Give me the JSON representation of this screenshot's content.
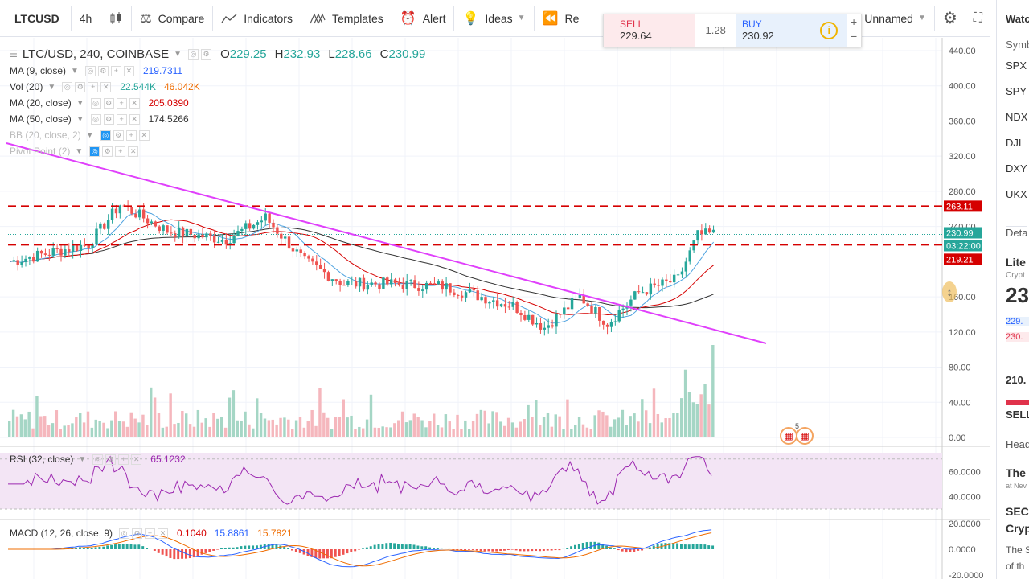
{
  "toolbar": {
    "symbol": "LTCUSD",
    "interval": "4h",
    "compare": "Compare",
    "indicators": "Indicators",
    "templates": "Templates",
    "alert": "Alert",
    "ideas": "Ideas",
    "replay": "Re",
    "layout_name": "Unnamed"
  },
  "trade": {
    "sell_label": "SELL",
    "sell_value": "229.64",
    "spread": "1.28",
    "buy_label": "BUY",
    "buy_value": "230.92",
    "info": "i",
    "plus": "+",
    "minus": "−"
  },
  "main_legend": {
    "title": "LTC/USD, 240, COINBASE",
    "o_label": "O",
    "o": "229.25",
    "h_label": "H",
    "h": "232.93",
    "l_label": "L",
    "l": "228.66",
    "c_label": "C",
    "c": "230.99"
  },
  "indicators": [
    {
      "name": "MA (9, close)",
      "values": [
        "219.7311"
      ],
      "colors": [
        "#2962ff"
      ]
    },
    {
      "name": "Vol (20)",
      "values": [
        "22.544K",
        "46.042K"
      ],
      "colors": [
        "#26a69a",
        "#ef6c00"
      ]
    },
    {
      "name": "MA (20, close)",
      "values": [
        "205.0390"
      ],
      "colors": [
        "#d50000"
      ]
    },
    {
      "name": "MA (50, close)",
      "values": [
        "174.5266"
      ],
      "colors": [
        "#333333"
      ]
    },
    {
      "name": "BB (20, close, 2)",
      "values": [],
      "colors": []
    },
    {
      "name": "Pivot Point (2)",
      "values": [],
      "colors": []
    }
  ],
  "rsi_legend": {
    "name": "RSI (32, close)",
    "value": "65.1232"
  },
  "macd_legend": {
    "name": "MACD (12, 26, close, 9)",
    "v1": "0.1040",
    "v2": "15.8861",
    "v3": "15.7821"
  },
  "price_axis": {
    "ticks": [
      "440.00",
      "400.00",
      "360.00",
      "320.00",
      "280.00",
      "240.00",
      "160.00",
      "120.00",
      "80.00",
      "40.00",
      "0.00"
    ],
    "labels": [
      {
        "text": "263.11",
        "color": "#d50000"
      },
      {
        "text": "230.99",
        "color": "#26a69a"
      },
      {
        "text": "03:22:00",
        "color": "#26a69a"
      },
      {
        "text": "219.21",
        "color": "#d50000"
      }
    ]
  },
  "rsi_axis": {
    "ticks": [
      "60.0000",
      "40.0000"
    ]
  },
  "macd_axis": {
    "ticks": [
      "20.0000",
      "0.0000",
      "-20.0000"
    ]
  },
  "event_badge": "5",
  "watchlist": {
    "title": "Watc",
    "symbol_header": "Symb",
    "items": [
      "SPX",
      "SPY",
      "NDX",
      "DJI",
      "DXY",
      "UKX"
    ],
    "details_header": "Deta",
    "detail_name": "Lite",
    "detail_sub": "Crypt",
    "detail_price": "23",
    "detail_bid": "229.",
    "detail_ask": "230.",
    "detail_low": "210.",
    "sell_label": "SELL",
    "headlines_header": "Head",
    "headline1": "The",
    "headline1_sub": "at Nev",
    "headline2a": "SEC",
    "headline2b": "Cryp",
    "headline2c": "The S",
    "headline2d": "of th"
  }
}
